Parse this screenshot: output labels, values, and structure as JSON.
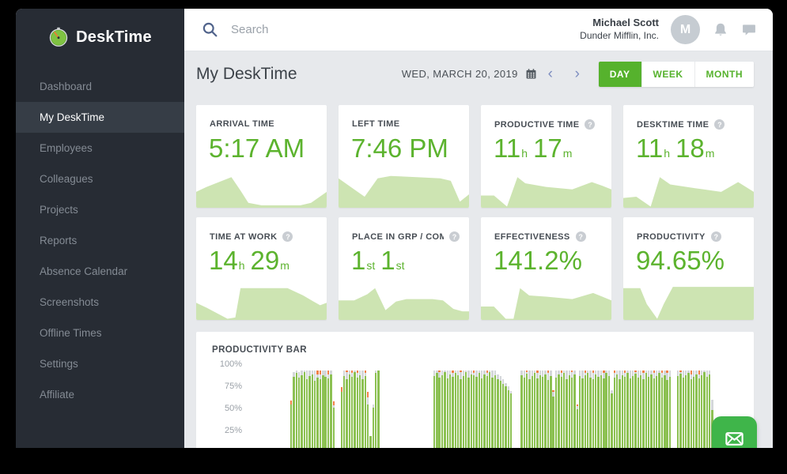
{
  "sidebar": {
    "logo_text": "DeskTime",
    "items": [
      {
        "label": "Dashboard",
        "active": false
      },
      {
        "label": "My DeskTime",
        "active": true
      },
      {
        "label": "Employees",
        "active": false
      },
      {
        "label": "Colleagues",
        "active": false
      },
      {
        "label": "Projects",
        "active": false
      },
      {
        "label": "Reports",
        "active": false
      },
      {
        "label": "Absence Calendar",
        "active": false
      },
      {
        "label": "Screenshots",
        "active": false
      },
      {
        "label": "Offline Times",
        "active": false
      },
      {
        "label": "Settings",
        "active": false
      },
      {
        "label": "Affiliate",
        "active": false
      }
    ]
  },
  "topbar": {
    "search_placeholder": "Search",
    "user_name": "Michael Scott",
    "user_company": "Dunder Mifflin, Inc.",
    "avatar_initial": "M"
  },
  "page_header": {
    "title": "My DeskTime",
    "date_label": "WED, MARCH 20, 2019",
    "prev_arrow": "‹",
    "next_arrow": "›",
    "range_buttons": [
      {
        "label": "DAY",
        "active": true
      },
      {
        "label": "WEEK",
        "active": false
      },
      {
        "label": "MONTH",
        "active": false
      }
    ]
  },
  "icons": {
    "logo": "stopwatch-icon",
    "search": "magnifier-icon",
    "notifications": "bell-icon",
    "messages": "chat-bubble-icon",
    "date_picker": "calendar-icon",
    "help": "question-mark-icon",
    "chat_fab": "envelope-icon"
  },
  "colors": {
    "accent_green": "#56b22d",
    "value_green": "#5cb32e",
    "area_fill": "#cde4b2",
    "bar_green": "#8cc152",
    "bar_gray": "#d4d7da",
    "bar_orange": "#f08048",
    "fab_green": "#3fb54a",
    "sidebar_bg": "#272c34",
    "sidebar_active_bg": "#363d46",
    "page_bg": "#e7e9ec"
  },
  "stat_cards": [
    {
      "id": "arrival-time",
      "label": "ARRIVAL TIME",
      "has_help": false,
      "value_parts": [
        [
          "5:17 AM",
          "num"
        ]
      ],
      "area": [
        [
          0,
          13
        ],
        [
          8,
          17
        ],
        [
          27,
          25
        ],
        [
          34,
          14
        ],
        [
          40,
          4
        ],
        [
          50,
          2
        ],
        [
          80,
          2
        ],
        [
          88,
          4
        ],
        [
          100,
          13
        ]
      ]
    },
    {
      "id": "left-time",
      "label": "LEFT TIME",
      "has_help": false,
      "value_parts": [
        [
          "7:46 PM",
          "num"
        ]
      ],
      "area": [
        [
          0,
          24
        ],
        [
          12,
          15
        ],
        [
          20,
          9
        ],
        [
          30,
          24
        ],
        [
          40,
          26
        ],
        [
          60,
          25
        ],
        [
          78,
          24
        ],
        [
          86,
          22
        ],
        [
          93,
          5
        ],
        [
          100,
          11
        ]
      ]
    },
    {
      "id": "productive-time",
      "label": "PRODUCTIVE TIME",
      "has_help": true,
      "value_parts": [
        [
          "11",
          "num"
        ],
        [
          "h",
          "unit"
        ],
        [
          "17",
          "num"
        ],
        [
          "m",
          "unit"
        ]
      ],
      "area": [
        [
          0,
          10
        ],
        [
          10,
          10
        ],
        [
          20,
          1
        ],
        [
          28,
          25
        ],
        [
          34,
          20
        ],
        [
          50,
          17
        ],
        [
          70,
          15
        ],
        [
          85,
          21
        ],
        [
          93,
          18
        ],
        [
          100,
          15
        ]
      ]
    },
    {
      "id": "desktime-time",
      "label": "DESKTIME TIME",
      "has_help": true,
      "value_parts": [
        [
          "11",
          "num"
        ],
        [
          "h",
          "unit"
        ],
        [
          "18",
          "num"
        ],
        [
          "m",
          "unit"
        ]
      ],
      "area": [
        [
          0,
          8
        ],
        [
          10,
          9
        ],
        [
          21,
          1
        ],
        [
          28,
          25
        ],
        [
          36,
          19
        ],
        [
          55,
          16
        ],
        [
          75,
          13
        ],
        [
          88,
          21
        ],
        [
          100,
          13
        ]
      ]
    },
    {
      "id": "time-at-work",
      "label": "TIME AT WORK",
      "has_help": true,
      "value_parts": [
        [
          "14",
          "num"
        ],
        [
          "h",
          "unit"
        ],
        [
          "29",
          "num"
        ],
        [
          "m",
          "unit"
        ]
      ],
      "area": [
        [
          0,
          14
        ],
        [
          8,
          10
        ],
        [
          24,
          1
        ],
        [
          30,
          2
        ],
        [
          34,
          26
        ],
        [
          45,
          26
        ],
        [
          70,
          26
        ],
        [
          82,
          20
        ],
        [
          90,
          15
        ],
        [
          95,
          12
        ],
        [
          100,
          14
        ]
      ]
    },
    {
      "id": "place-in-group",
      "label": "PLACE IN GRP / COM'",
      "has_help": true,
      "value_parts": [
        [
          "1",
          "num"
        ],
        [
          "st",
          "unit"
        ],
        [
          "1",
          "num"
        ],
        [
          "st",
          "unit"
        ]
      ],
      "area": [
        [
          0,
          16
        ],
        [
          12,
          16
        ],
        [
          22,
          21
        ],
        [
          28,
          26
        ],
        [
          36,
          8
        ],
        [
          44,
          15
        ],
        [
          52,
          17
        ],
        [
          72,
          17
        ],
        [
          80,
          16
        ],
        [
          88,
          9
        ],
        [
          95,
          7
        ],
        [
          100,
          7
        ]
      ]
    },
    {
      "id": "effectiveness",
      "label": "EFFECTIVENESS",
      "has_help": true,
      "value_parts": [
        [
          "141.2%",
          "num"
        ]
      ],
      "area": [
        [
          0,
          11
        ],
        [
          10,
          11
        ],
        [
          19,
          1
        ],
        [
          25,
          1
        ],
        [
          30,
          26
        ],
        [
          37,
          20
        ],
        [
          50,
          19
        ],
        [
          70,
          17
        ],
        [
          86,
          22
        ],
        [
          93,
          19
        ],
        [
          100,
          16
        ]
      ]
    },
    {
      "id": "productivity",
      "label": "PRODUCTIVITY",
      "has_help": true,
      "value_parts": [
        [
          "94.65%",
          "num"
        ]
      ],
      "area": [
        [
          0,
          26
        ],
        [
          13,
          26
        ],
        [
          18,
          13
        ],
        [
          26,
          1
        ],
        [
          31,
          13
        ],
        [
          38,
          27
        ],
        [
          45,
          27
        ],
        [
          100,
          27
        ]
      ]
    }
  ],
  "chart_data": {
    "type": "bar",
    "title": "PRODUCTIVITY BAR",
    "y_ticks": [
      "100%",
      "75%",
      "50%",
      "25%"
    ],
    "ylim": [
      0,
      100
    ],
    "x_slots_total": 192,
    "stack_legend": {
      "bottom": "productive-green",
      "middle": "neutral-gray",
      "top": "unproductive-orange"
    },
    "segments": [
      {
        "start": 17,
        "bars": [
          [
            62,
            0,
            4
          ],
          [
            93,
            5,
            0
          ],
          [
            97,
            3,
            0
          ],
          [
            92,
            6,
            0
          ],
          [
            95,
            5,
            0
          ],
          [
            98,
            2,
            0
          ],
          [
            90,
            10,
            0
          ],
          [
            94,
            6,
            0
          ],
          [
            96,
            4,
            0
          ],
          [
            88,
            12,
            0
          ],
          [
            92,
            4,
            4
          ],
          [
            90,
            6,
            4
          ],
          [
            95,
            5,
            0
          ],
          [
            93,
            7,
            0
          ],
          [
            91,
            5,
            4
          ],
          [
            96,
            4,
            0
          ],
          [
            58,
            3,
            4
          ]
        ]
      },
      {
        "start": 36,
        "bars": [
          [
            76,
            0,
            5
          ],
          [
            94,
            6,
            0
          ],
          [
            90,
            8,
            2
          ],
          [
            96,
            4,
            0
          ],
          [
            93,
            4,
            3
          ],
          [
            98,
            2,
            0
          ],
          [
            92,
            5,
            3
          ],
          [
            95,
            5,
            0
          ],
          [
            90,
            10,
            0
          ],
          [
            94,
            3,
            3
          ],
          [
            62,
            8,
            6
          ],
          [
            26,
            0,
            0
          ],
          [
            58,
            4,
            0
          ],
          [
            97,
            3,
            0
          ],
          [
            100,
            0,
            0
          ]
        ]
      },
      {
        "start": 71,
        "bars": [
          [
            94,
            6,
            0
          ],
          [
            97,
            3,
            0
          ],
          [
            92,
            6,
            2
          ],
          [
            95,
            5,
            0
          ],
          [
            98,
            2,
            0
          ],
          [
            91,
            9,
            0
          ],
          [
            96,
            4,
            0
          ],
          [
            93,
            4,
            3
          ],
          [
            97,
            3,
            0
          ],
          [
            95,
            5,
            0
          ],
          [
            90,
            8,
            2
          ],
          [
            94,
            6,
            0
          ],
          [
            98,
            2,
            0
          ],
          [
            92,
            8,
            0
          ],
          [
            96,
            4,
            0
          ],
          [
            95,
            2,
            3
          ],
          [
            93,
            7,
            0
          ],
          [
            97,
            3,
            0
          ],
          [
            91,
            9,
            0
          ],
          [
            96,
            4,
            0
          ],
          [
            94,
            3,
            3
          ],
          [
            98,
            2,
            0
          ],
          [
            92,
            8,
            0
          ],
          [
            95,
            5,
            0
          ],
          [
            90,
            6,
            0
          ],
          [
            88,
            6,
            0
          ],
          [
            85,
            5,
            0
          ],
          [
            82,
            4,
            0
          ],
          [
            78,
            4,
            0
          ],
          [
            74,
            3,
            0
          ]
        ]
      },
      {
        "start": 104,
        "bars": [
          [
            95,
            5,
            0
          ],
          [
            92,
            8,
            0
          ],
          [
            96,
            2,
            2
          ],
          [
            90,
            10,
            0
          ],
          [
            94,
            6,
            0
          ],
          [
            97,
            3,
            0
          ],
          [
            91,
            6,
            3
          ],
          [
            95,
            5,
            0
          ],
          [
            93,
            7,
            0
          ],
          [
            96,
            4,
            0
          ],
          [
            89,
            8,
            3
          ],
          [
            94,
            6,
            0
          ],
          [
            70,
            6,
            2
          ],
          [
            92,
            8,
            0
          ],
          [
            96,
            4,
            0
          ],
          [
            93,
            4,
            3
          ],
          [
            97,
            3,
            0
          ],
          [
            90,
            10,
            0
          ],
          [
            95,
            5,
            0
          ],
          [
            92,
            6,
            2
          ],
          [
            96,
            4,
            0
          ],
          [
            56,
            4,
            2
          ],
          [
            94,
            6,
            0
          ],
          [
            91,
            9,
            0
          ],
          [
            95,
            2,
            3
          ],
          [
            97,
            3,
            0
          ],
          [
            92,
            8,
            0
          ],
          [
            90,
            7,
            3
          ],
          [
            96,
            4,
            0
          ],
          [
            93,
            7,
            0
          ],
          [
            95,
            5,
            0
          ],
          [
            91,
            6,
            3
          ],
          [
            97,
            3,
            0
          ],
          [
            94,
            6,
            0
          ],
          [
            74,
            4,
            0
          ],
          [
            92,
            5,
            3
          ],
          [
            96,
            4,
            0
          ],
          [
            90,
            10,
            0
          ],
          [
            95,
            5,
            0
          ],
          [
            93,
            4,
            3
          ],
          [
            97,
            3,
            0
          ],
          [
            91,
            9,
            0
          ],
          [
            94,
            6,
            0
          ],
          [
            96,
            2,
            2
          ],
          [
            92,
            8,
            0
          ],
          [
            95,
            5,
            0
          ],
          [
            90,
            7,
            3
          ],
          [
            97,
            3,
            0
          ],
          [
            93,
            7,
            0
          ],
          [
            96,
            4,
            0
          ],
          [
            91,
            6,
            3
          ],
          [
            94,
            6,
            0
          ],
          [
            97,
            3,
            0
          ],
          [
            92,
            5,
            3
          ],
          [
            95,
            5,
            0
          ],
          [
            89,
            8,
            3
          ],
          [
            93,
            7,
            0
          ]
        ]
      },
      {
        "start": 163,
        "bars": [
          [
            94,
            6,
            0
          ],
          [
            96,
            2,
            2
          ],
          [
            92,
            8,
            0
          ],
          [
            95,
            5,
            0
          ],
          [
            97,
            3,
            0
          ],
          [
            90,
            6,
            4
          ],
          [
            93,
            7,
            0
          ],
          [
            96,
            4,
            0
          ],
          [
            91,
            5,
            4
          ],
          [
            95,
            5,
            0
          ],
          [
            98,
            2,
            0
          ],
          [
            93,
            7,
            0
          ],
          [
            96,
            4,
            0
          ],
          [
            55,
            12,
            0
          ]
        ]
      }
    ]
  }
}
